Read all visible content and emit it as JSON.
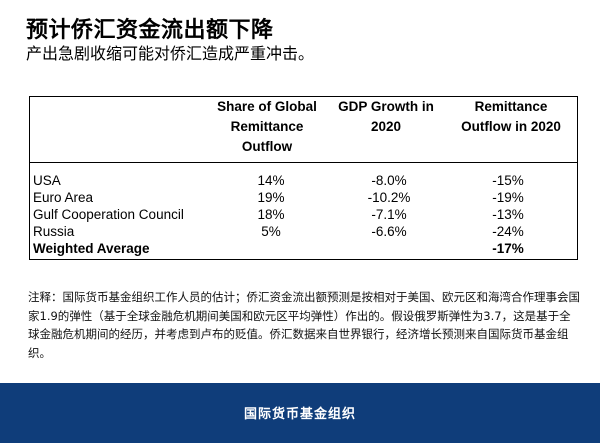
{
  "title": "预计侨汇资金流出额下降",
  "subtitle": "产出急剧收缩可能对侨汇造成严重冲击。",
  "table": {
    "headers": [
      "Share of Global Remittance Outflow",
      "GDP Growth in 2020",
      "Remittance Outflow in 2020"
    ],
    "rows": [
      {
        "region": "USA",
        "share": "14%",
        "gdp": "-8.0%",
        "outflow": "-15%"
      },
      {
        "region": "Euro Area",
        "share": "19%",
        "gdp": "-10.2%",
        "outflow": "-19%"
      },
      {
        "region": "Gulf Cooperation Council",
        "share": "18%",
        "gdp": "-7.1%",
        "outflow": "-13%"
      },
      {
        "region": "Russia",
        "share": "5%",
        "gdp": "-6.6%",
        "outflow": "-24%"
      }
    ],
    "total": {
      "region": "Weighted Average",
      "outflow": "-17%"
    }
  },
  "note": "注释：国际货币基金组织工作人员的估计；侨汇资金流出额预测是按相对于美国、欧元区和海湾合作理事会国家1.9的弹性（基于全球金融危机期间美国和欧元区平均弹性）作出的。假设俄罗斯弹性为3.7，这是基于全球金融危机期间的经历，并考虑到卢布的贬值。侨汇数据来自世界银行，经济增长预测来自国际货币基金组织。",
  "footer": "国际货币基金组织"
}
